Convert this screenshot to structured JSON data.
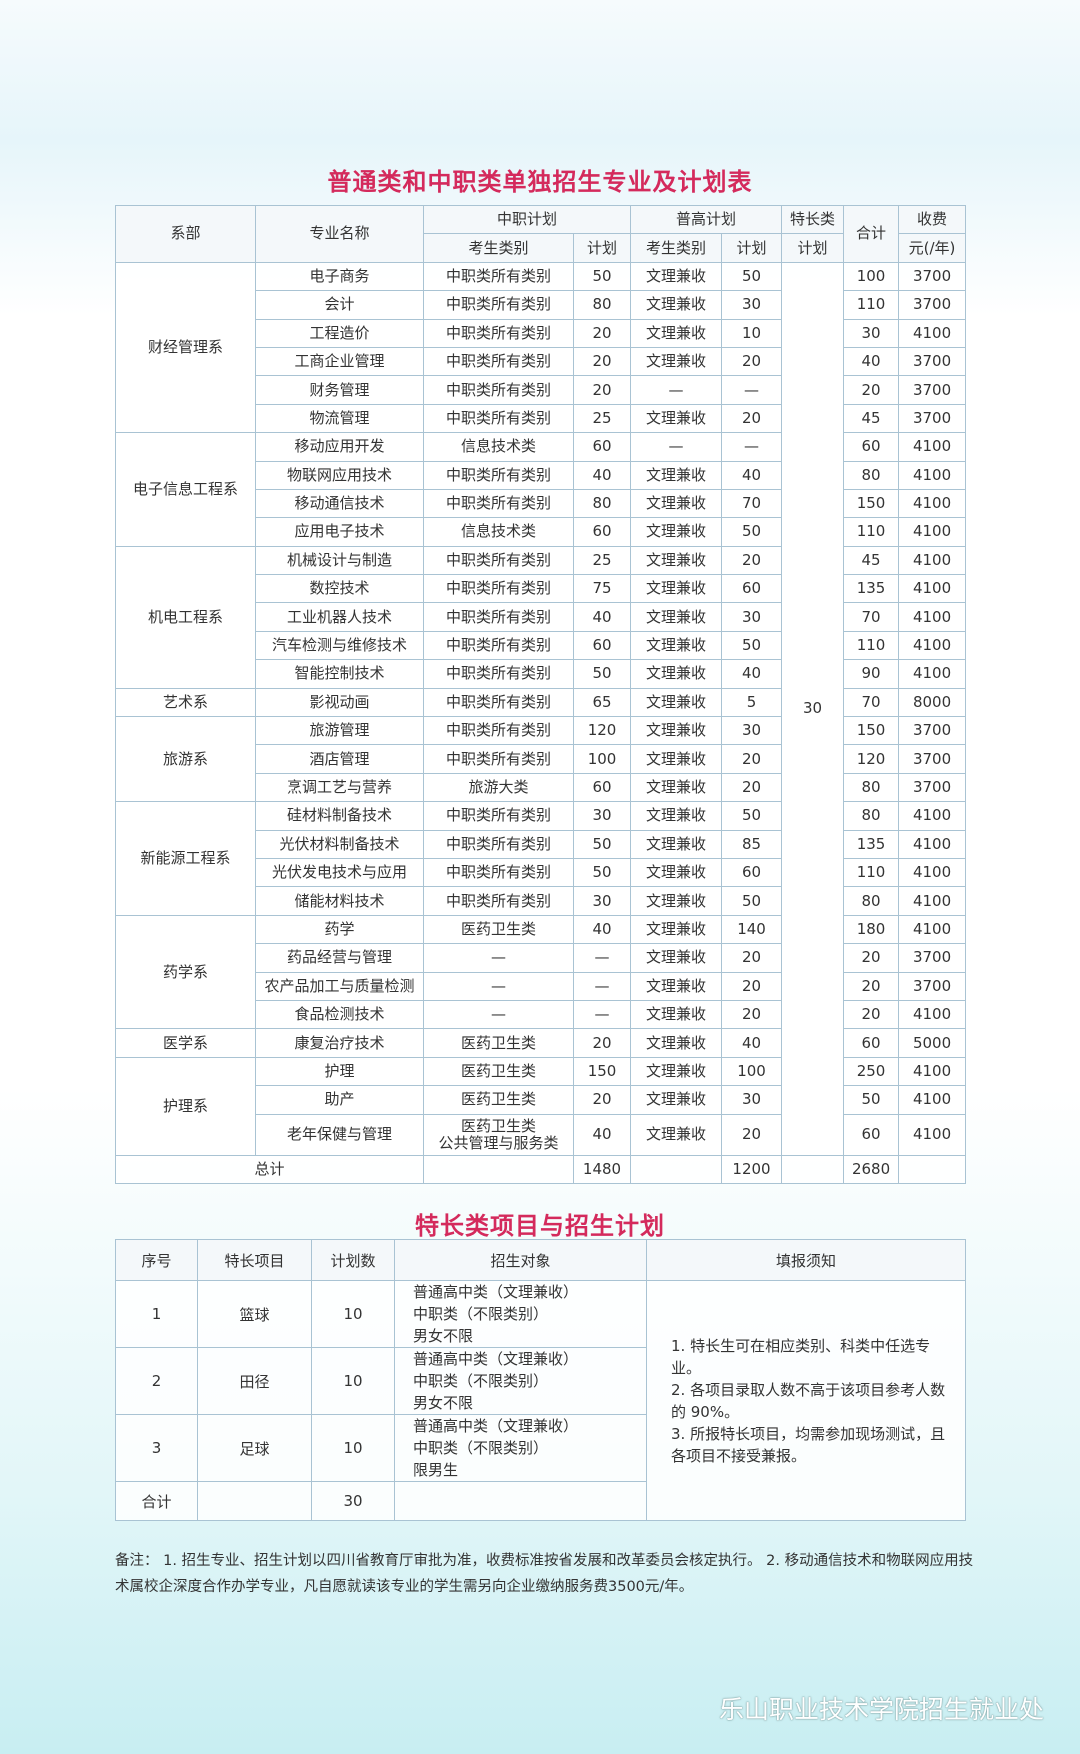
{
  "table1": {
    "title": "普通类和中职类单独招生专业及计划表",
    "header": {
      "dept": "系部",
      "major": "专业名称",
      "zz": "中职计划",
      "pg": "普高计划",
      "tc": "特长类",
      "total": "合计",
      "fee": "收费",
      "zz_cat": "考生类别",
      "zz_plan": "计划",
      "pg_cat": "考生类别",
      "pg_plan": "计划",
      "tc_plan": "计划",
      "fee_unit": "元(/年)"
    },
    "special_plan": "30",
    "departments": [
      {
        "name": "财经管理系",
        "majors": [
          [
            "电子商务",
            "中职类所有类别",
            "50",
            "文理兼收",
            "50",
            "100",
            "3700"
          ],
          [
            "会计",
            "中职类所有类别",
            "80",
            "文理兼收",
            "30",
            "110",
            "3700"
          ],
          [
            "工程造价",
            "中职类所有类别",
            "20",
            "文理兼收",
            "10",
            "30",
            "4100"
          ],
          [
            "工商企业管理",
            "中职类所有类别",
            "20",
            "文理兼收",
            "20",
            "40",
            "3700"
          ],
          [
            "财务管理",
            "中职类所有类别",
            "20",
            "—",
            "—",
            "20",
            "3700"
          ],
          [
            "物流管理",
            "中职类所有类别",
            "25",
            "文理兼收",
            "20",
            "45",
            "3700"
          ]
        ]
      },
      {
        "name": "电子信息工程系",
        "majors": [
          [
            "移动应用开发",
            "信息技术类",
            "60",
            "—",
            "—",
            "60",
            "4100"
          ],
          [
            "物联网应用技术",
            "中职类所有类别",
            "40",
            "文理兼收",
            "40",
            "80",
            "4100"
          ],
          [
            "移动通信技术",
            "中职类所有类别",
            "80",
            "文理兼收",
            "70",
            "150",
            "4100"
          ],
          [
            "应用电子技术",
            "信息技术类",
            "60",
            "文理兼收",
            "50",
            "110",
            "4100"
          ]
        ]
      },
      {
        "name": "机电工程系",
        "majors": [
          [
            "机械设计与制造",
            "中职类所有类别",
            "25",
            "文理兼收",
            "20",
            "45",
            "4100"
          ],
          [
            "数控技术",
            "中职类所有类别",
            "75",
            "文理兼收",
            "60",
            "135",
            "4100"
          ],
          [
            "工业机器人技术",
            "中职类所有类别",
            "40",
            "文理兼收",
            "30",
            "70",
            "4100"
          ],
          [
            "汽车检测与维修技术",
            "中职类所有类别",
            "60",
            "文理兼收",
            "50",
            "110",
            "4100"
          ],
          [
            "智能控制技术",
            "中职类所有类别",
            "50",
            "文理兼收",
            "40",
            "90",
            "4100"
          ]
        ]
      },
      {
        "name": "艺术系",
        "majors": [
          [
            "影视动画",
            "中职类所有类别",
            "65",
            "文理兼收",
            "5",
            "70",
            "8000"
          ]
        ]
      },
      {
        "name": "旅游系",
        "majors": [
          [
            "旅游管理",
            "中职类所有类别",
            "120",
            "文理兼收",
            "30",
            "150",
            "3700"
          ],
          [
            "酒店管理",
            "中职类所有类别",
            "100",
            "文理兼收",
            "20",
            "120",
            "3700"
          ],
          [
            "烹调工艺与营养",
            "旅游大类",
            "60",
            "文理兼收",
            "20",
            "80",
            "3700"
          ]
        ]
      },
      {
        "name": "新能源工程系",
        "majors": [
          [
            "硅材料制备技术",
            "中职类所有类别",
            "30",
            "文理兼收",
            "50",
            "80",
            "4100"
          ],
          [
            "光伏材料制备技术",
            "中职类所有类别",
            "50",
            "文理兼收",
            "85",
            "135",
            "4100"
          ],
          [
            "光伏发电技术与应用",
            "中职类所有类别",
            "50",
            "文理兼收",
            "60",
            "110",
            "4100"
          ],
          [
            "储能材料技术",
            "中职类所有类别",
            "30",
            "文理兼收",
            "50",
            "80",
            "4100"
          ]
        ]
      },
      {
        "name": "药学系",
        "majors": [
          [
            "药学",
            "医药卫生类",
            "40",
            "文理兼收",
            "140",
            "180",
            "4100"
          ],
          [
            "药品经营与管理",
            "—",
            "—",
            "文理兼收",
            "20",
            "20",
            "3700"
          ],
          [
            "农产品加工与质量检测",
            "—",
            "—",
            "文理兼收",
            "20",
            "20",
            "3700"
          ],
          [
            "食品检测技术",
            "—",
            "—",
            "文理兼收",
            "20",
            "20",
            "4100"
          ]
        ]
      },
      {
        "name": "医学系",
        "majors": [
          [
            "康复治疗技术",
            "医药卫生类",
            "20",
            "文理兼收",
            "40",
            "60",
            "5000"
          ]
        ]
      },
      {
        "name": "护理系",
        "majors": [
          [
            "护理",
            "医药卫生类",
            "150",
            "文理兼收",
            "100",
            "250",
            "4100"
          ],
          [
            "助产",
            "医药卫生类",
            "20",
            "文理兼收",
            "30",
            "50",
            "4100"
          ],
          [
            "老年保健与管理",
            "医药卫生类\n公共管理与服务类",
            "40",
            "文理兼收",
            "20",
            "60",
            "4100"
          ]
        ]
      }
    ],
    "total": {
      "label": "总计",
      "zz_plan": "1480",
      "pg_plan": "1200",
      "total": "2680"
    }
  },
  "table2": {
    "title": "特长类项目与招生计划",
    "header": [
      "序号",
      "特长项目",
      "计划数",
      "招生对象",
      "填报须知"
    ],
    "rows": [
      {
        "no": "1",
        "item": "篮球",
        "plan": "10",
        "target": [
          "普通高中类（文理兼收）",
          "中职类（不限类别）",
          "男女不限"
        ]
      },
      {
        "no": "2",
        "item": "田径",
        "plan": "10",
        "target": [
          "普通高中类（文理兼收）",
          "中职类（不限类别）",
          "男女不限"
        ]
      },
      {
        "no": "3",
        "item": "足球",
        "plan": "10",
        "target": [
          "普通高中类（文理兼收）",
          "中职类（不限类别）",
          "限男生"
        ]
      }
    ],
    "notes": [
      "1. 特长生可在相应类别、科类中任选专业。",
      "2. 各项目录取人数不高于该项目参考人数的 90%。",
      "3. 所报特长项目，均需参加现场测试，且各项目不接受兼报。"
    ],
    "total": {
      "label": "合计",
      "plan": "30"
    }
  },
  "footnote": "备注： 1. 招生专业、招生计划以四川省教育厅审批为准，收费标准按省发展和改革委员会核定执行。 2. 移动通信技术和物联网应用技术属校企深度合作办学专业，凡自愿就读该专业的学生需另向企业缴纳服务费3500元/年。",
  "watermark": "乐山职业技术学院招生就业处"
}
